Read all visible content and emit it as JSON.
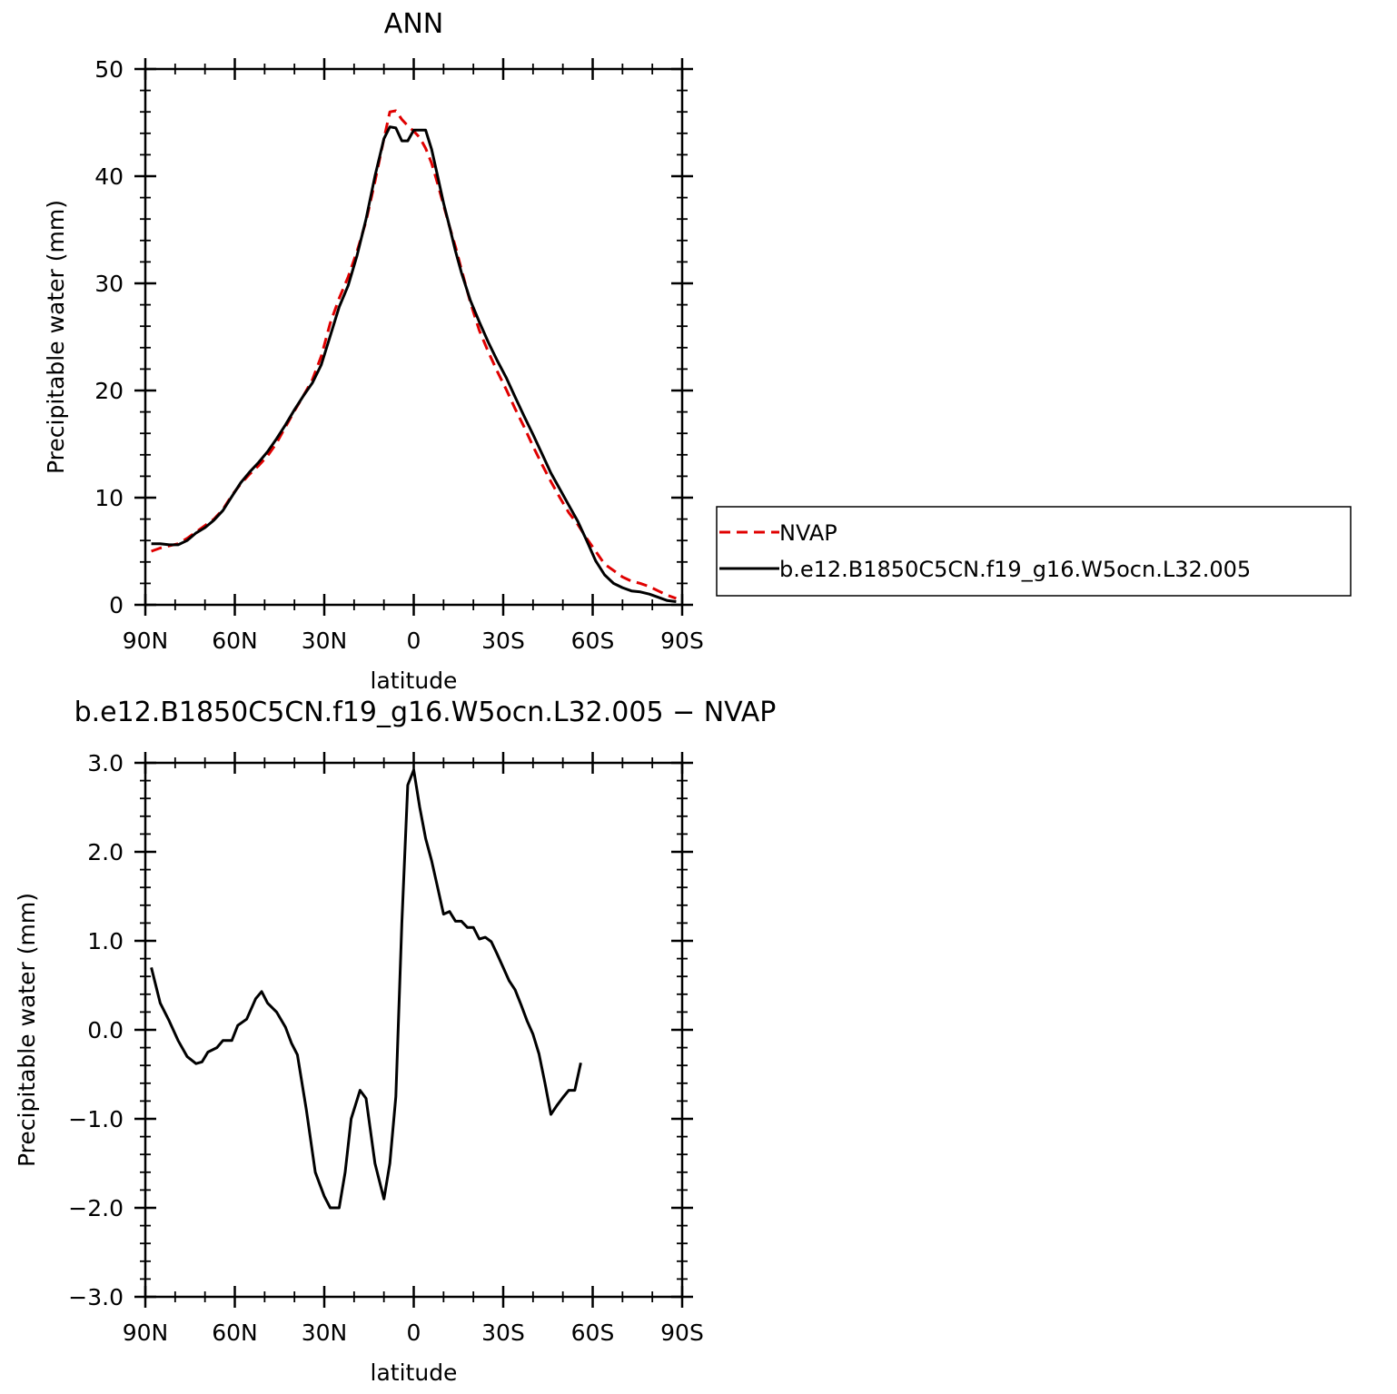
{
  "chart_data": [
    {
      "type": "line",
      "title": "ANN",
      "xlabel": "latitude",
      "ylabel": "Precipitable water (mm)",
      "xlim": [
        90,
        -90
      ],
      "ylim": [
        0,
        50
      ],
      "x_ticks": [
        {
          "value": 90,
          "label": "90N"
        },
        {
          "value": 60,
          "label": "60N"
        },
        {
          "value": 30,
          "label": "30N"
        },
        {
          "value": 0,
          "label": "0"
        },
        {
          "value": -30,
          "label": "30S"
        },
        {
          "value": -60,
          "label": "60S"
        },
        {
          "value": -90,
          "label": "90S"
        }
      ],
      "y_ticks": [
        {
          "value": 0,
          "label": "0"
        },
        {
          "value": 10,
          "label": "10"
        },
        {
          "value": 20,
          "label": "20"
        },
        {
          "value": 30,
          "label": "30"
        },
        {
          "value": 40,
          "label": "40"
        },
        {
          "value": 50,
          "label": "50"
        }
      ],
      "grid": false,
      "legend": {
        "placement": "right",
        "entries": [
          "NVAP",
          "b.e12.B1850C5CN.f19_g16.W5ocn.L32.005"
        ]
      },
      "series": [
        {
          "name": "NVAP",
          "color": "#e00000",
          "dash": "dashed",
          "x": [
            87.5,
            82.5,
            77.5,
            72.5,
            67.5,
            62.5,
            57.5,
            52.5,
            47.5,
            42.5,
            37.5,
            32.5,
            27.5,
            22.5,
            17.5,
            12.5,
            7.5,
            5,
            2.5,
            0,
            -2.5,
            -5,
            -7.5,
            -10,
            -12.5,
            -17.5,
            -22.5,
            -27.5,
            -32.5,
            -37.5,
            -42.5,
            -47.5,
            -52.5,
            -57.5,
            -62.5,
            -67.5,
            -72.5,
            -77.5,
            -82.5,
            -87.5
          ],
          "y": [
            5.0,
            5.6,
            6.0,
            7.2,
            8.3,
            10.2,
            12.0,
            13.4,
            15.8,
            18.3,
            21.0,
            24.6,
            29.0,
            33.5,
            39.0,
            46.0,
            46.3,
            45.0,
            44.3,
            43.6,
            42.6,
            41.0,
            38.0,
            35.3,
            32.4,
            27.2,
            23.2,
            20.0,
            17.0,
            14.0,
            11.0,
            8.7,
            6.5,
            4.0,
            3.0,
            2.0,
            1.6,
            0.8,
            0.6,
            0.5
          ],
          "x_points": [
            88.75,
            83.75,
            78.75,
            73.75,
            68.75,
            63.75,
            58.75,
            53.75,
            48.75,
            43.75,
            38.75,
            33.75,
            28.75,
            23.75,
            18.75,
            13.75,
            8.75,
            6.25,
            3.75,
            1.25,
            -1.25,
            -3.75,
            -6.25,
            -8.75,
            -11.25,
            -16.25,
            -21.25,
            -26.25,
            -31.25,
            -36.25,
            -41.25,
            -46.25,
            -51.25,
            -56.25,
            -61.25,
            -66.25,
            -71.25,
            -76.25,
            -81.25,
            -86.25
          ]
        }
      ]
    }
  ]
}
